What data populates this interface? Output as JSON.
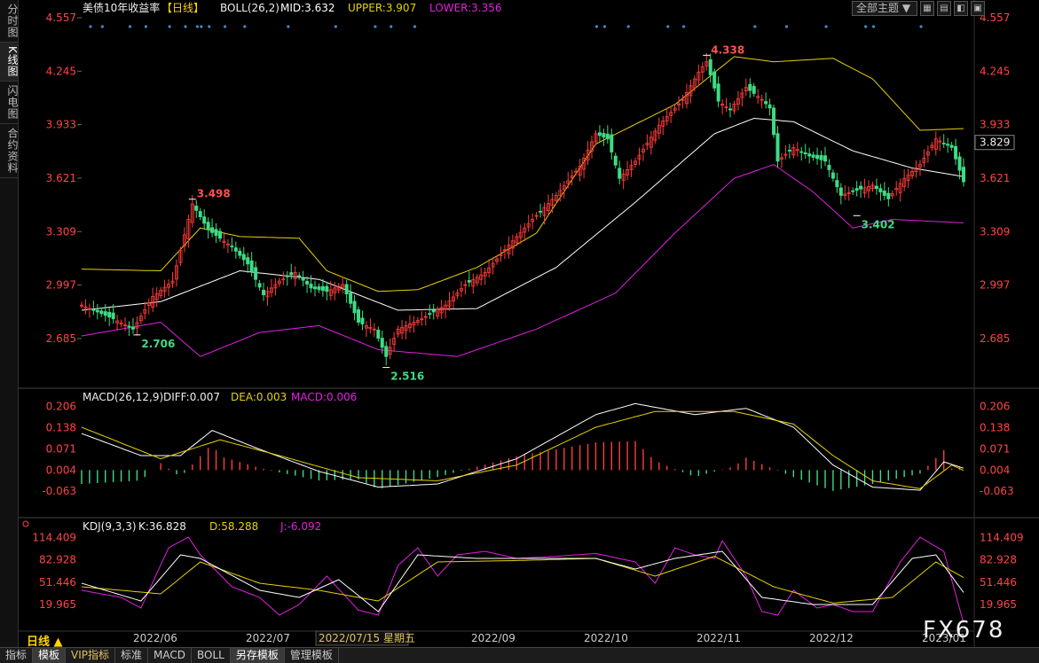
{
  "sidebar": {
    "tabs": [
      "分时图",
      "K线图",
      "闪电图",
      "合约资料"
    ]
  },
  "top_controls": {
    "theme_label": "全部主题",
    "theme_arrow": "▼"
  },
  "period_button": "日线 ▲",
  "bottom_tabs": [
    "指标",
    "模板",
    "VIP指标",
    "标准",
    "MACD",
    "BOLL",
    "另存模板",
    "管理模板"
  ],
  "watermark": "FX678",
  "colors": {
    "up": "#ff3b3b",
    "down": "#3ddc84",
    "mid": "#ffffff",
    "upper": "#e6d200",
    "lower": "#e020e0",
    "axis": "#ff4444"
  },
  "chart_data": [
    {
      "type": "candlestick",
      "title": "美债10年收益率",
      "period": "【日线】",
      "indicator": "BOLL(26,2)",
      "legend": [
        {
          "name": "MID",
          "value": "3.632"
        },
        {
          "name": "UPPER",
          "value": "3.907"
        },
        {
          "name": "LOWER",
          "value": "3.356"
        }
      ],
      "y_ticks": [
        "4.557",
        "4.245",
        "3.933",
        "3.621",
        "3.309",
        "2.997",
        "2.685"
      ],
      "current_price": "3.829",
      "x_labels": [
        "2022/06",
        "2022/07",
        "2022/08",
        "2022/09",
        "2022/10",
        "2022/11",
        "2022/12",
        "2023/01"
      ],
      "crosshair_label": "2022/07/15 星期五",
      "annotations": [
        {
          "label": "3.498",
          "type": "high"
        },
        {
          "label": "2.706",
          "type": "low"
        },
        {
          "label": "2.516",
          "type": "low"
        },
        {
          "label": "4.338",
          "type": "high"
        },
        {
          "label": "3.402",
          "type": "low"
        }
      ],
      "ylim": [
        2.55,
        4.557
      ],
      "price_path": [
        [
          0,
          2.88
        ],
        [
          8,
          2.8
        ],
        [
          13,
          2.74
        ],
        [
          18,
          2.93
        ],
        [
          23,
          3.02
        ],
        [
          28,
          3.47
        ],
        [
          32,
          3.32
        ],
        [
          38,
          3.22
        ],
        [
          42,
          3.12
        ],
        [
          46,
          2.94
        ],
        [
          50,
          3.02
        ],
        [
          54,
          3.07
        ],
        [
          58,
          2.98
        ],
        [
          62,
          2.96
        ],
        [
          66,
          3.0
        ],
        [
          70,
          2.78
        ],
        [
          74,
          2.74
        ],
        [
          77,
          2.58
        ],
        [
          80,
          2.74
        ],
        [
          86,
          2.8
        ],
        [
          92,
          2.88
        ],
        [
          97,
          3.0
        ],
        [
          102,
          3.07
        ],
        [
          108,
          3.23
        ],
        [
          114,
          3.38
        ],
        [
          120,
          3.52
        ],
        [
          126,
          3.69
        ],
        [
          130,
          3.88
        ],
        [
          133,
          3.85
        ],
        [
          136,
          3.62
        ],
        [
          140,
          3.72
        ],
        [
          146,
          3.93
        ],
        [
          152,
          4.08
        ],
        [
          156,
          4.24
        ],
        [
          158,
          4.3
        ],
        [
          161,
          4.07
        ],
        [
          164,
          4.02
        ],
        [
          168,
          4.15
        ],
        [
          172,
          4.08
        ],
        [
          174,
          4.03
        ],
        [
          176,
          3.72
        ],
        [
          180,
          3.8
        ],
        [
          184,
          3.75
        ],
        [
          188,
          3.72
        ],
        [
          192,
          3.52
        ],
        [
          196,
          3.55
        ],
        [
          200,
          3.58
        ],
        [
          204,
          3.5
        ],
        [
          208,
          3.62
        ],
        [
          212,
          3.7
        ],
        [
          216,
          3.85
        ],
        [
          220,
          3.8
        ],
        [
          223,
          3.6
        ]
      ],
      "mid_path": [
        [
          0,
          2.85
        ],
        [
          20,
          2.9
        ],
        [
          40,
          3.08
        ],
        [
          60,
          3.03
        ],
        [
          80,
          2.85
        ],
        [
          100,
          2.86
        ],
        [
          120,
          3.1
        ],
        [
          140,
          3.48
        ],
        [
          160,
          3.88
        ],
        [
          170,
          3.97
        ],
        [
          180,
          3.95
        ],
        [
          195,
          3.78
        ],
        [
          210,
          3.68
        ],
        [
          223,
          3.63
        ]
      ],
      "upper_path": [
        [
          0,
          3.09
        ],
        [
          20,
          3.08
        ],
        [
          30,
          3.33
        ],
        [
          40,
          3.28
        ],
        [
          55,
          3.27
        ],
        [
          62,
          3.08
        ],
        [
          75,
          2.96
        ],
        [
          85,
          2.97
        ],
        [
          100,
          3.1
        ],
        [
          115,
          3.3
        ],
        [
          130,
          3.82
        ],
        [
          150,
          4.05
        ],
        [
          165,
          4.33
        ],
        [
          175,
          4.3
        ],
        [
          190,
          4.32
        ],
        [
          200,
          4.2
        ],
        [
          212,
          3.9
        ],
        [
          223,
          3.91
        ]
      ],
      "lower_path": [
        [
          0,
          2.7
        ],
        [
          20,
          2.78
        ],
        [
          30,
          2.58
        ],
        [
          45,
          2.72
        ],
        [
          60,
          2.76
        ],
        [
          75,
          2.62
        ],
        [
          95,
          2.58
        ],
        [
          115,
          2.74
        ],
        [
          135,
          2.95
        ],
        [
          150,
          3.3
        ],
        [
          165,
          3.62
        ],
        [
          175,
          3.7
        ],
        [
          185,
          3.54
        ],
        [
          195,
          3.33
        ],
        [
          205,
          3.38
        ],
        [
          223,
          3.36
        ]
      ]
    },
    {
      "type": "histogram",
      "indicator": "MACD(26,12,9)",
      "legend": [
        {
          "name": "DIFF",
          "value": "0.007"
        },
        {
          "name": "DEA",
          "value": "0.003"
        },
        {
          "name": "MACD",
          "value": "0.006"
        }
      ],
      "y_ticks": [
        "0.206",
        "0.138",
        "0.071",
        "0.004",
        "-0.063"
      ],
      "ylim": [
        -0.13,
        0.23
      ],
      "diff_path": [
        [
          0,
          0.12
        ],
        [
          15,
          0.05
        ],
        [
          25,
          0.05
        ],
        [
          33,
          0.13
        ],
        [
          45,
          0.07
        ],
        [
          60,
          0.0
        ],
        [
          75,
          -0.05
        ],
        [
          90,
          -0.04
        ],
        [
          110,
          0.04
        ],
        [
          130,
          0.18
        ],
        [
          140,
          0.215
        ],
        [
          155,
          0.18
        ],
        [
          168,
          0.2
        ],
        [
          180,
          0.14
        ],
        [
          190,
          0.02
        ],
        [
          200,
          -0.05
        ],
        [
          212,
          -0.06
        ],
        [
          218,
          0.03
        ],
        [
          223,
          0.01
        ]
      ],
      "dea_path": [
        [
          0,
          0.14
        ],
        [
          20,
          0.04
        ],
        [
          35,
          0.1
        ],
        [
          50,
          0.05
        ],
        [
          70,
          -0.02
        ],
        [
          90,
          -0.03
        ],
        [
          110,
          0.02
        ],
        [
          130,
          0.14
        ],
        [
          145,
          0.19
        ],
        [
          165,
          0.19
        ],
        [
          180,
          0.15
        ],
        [
          190,
          0.05
        ],
        [
          200,
          -0.03
        ],
        [
          212,
          -0.055
        ],
        [
          220,
          0.02
        ],
        [
          223,
          0.003
        ]
      ]
    },
    {
      "type": "line",
      "indicator": "KDJ(9,3,3)",
      "legend": [
        {
          "name": "K",
          "value": "36.828"
        },
        {
          "name": "D",
          "value": "58.288"
        },
        {
          "name": "J",
          "value": "-6.092"
        }
      ],
      "y_ticks": [
        "114.409",
        "82.928",
        "51.446",
        "19.965"
      ],
      "ylim": [
        -10,
        125
      ],
      "j_path": [
        [
          0,
          40
        ],
        [
          10,
          30
        ],
        [
          15,
          15
        ],
        [
          22,
          100
        ],
        [
          27,
          115
        ],
        [
          30,
          90
        ],
        [
          38,
          45
        ],
        [
          45,
          30
        ],
        [
          50,
          5
        ],
        [
          55,
          20
        ],
        [
          62,
          60
        ],
        [
          70,
          12
        ],
        [
          75,
          5
        ],
        [
          80,
          75
        ],
        [
          85,
          100
        ],
        [
          90,
          60
        ],
        [
          95,
          90
        ],
        [
          102,
          95
        ],
        [
          110,
          85
        ],
        [
          120,
          88
        ],
        [
          130,
          92
        ],
        [
          140,
          80
        ],
        [
          145,
          50
        ],
        [
          150,
          100
        ],
        [
          155,
          90
        ],
        [
          160,
          85
        ],
        [
          162,
          110
        ],
        [
          168,
          60
        ],
        [
          172,
          10
        ],
        [
          176,
          5
        ],
        [
          180,
          40
        ],
        [
          186,
          15
        ],
        [
          190,
          20
        ],
        [
          195,
          10
        ],
        [
          200,
          10
        ],
        [
          207,
          80
        ],
        [
          212,
          115
        ],
        [
          218,
          95
        ],
        [
          223,
          -6
        ]
      ],
      "k_path": [
        [
          0,
          50
        ],
        [
          15,
          25
        ],
        [
          25,
          90
        ],
        [
          30,
          85
        ],
        [
          45,
          40
        ],
        [
          55,
          30
        ],
        [
          65,
          55
        ],
        [
          75,
          10
        ],
        [
          85,
          90
        ],
        [
          100,
          85
        ],
        [
          130,
          85
        ],
        [
          140,
          70
        ],
        [
          150,
          85
        ],
        [
          162,
          95
        ],
        [
          172,
          30
        ],
        [
          185,
          20
        ],
        [
          200,
          20
        ],
        [
          210,
          85
        ],
        [
          216,
          90
        ],
        [
          223,
          37
        ]
      ],
      "d_path": [
        [
          0,
          45
        ],
        [
          20,
          35
        ],
        [
          30,
          80
        ],
        [
          45,
          50
        ],
        [
          60,
          40
        ],
        [
          75,
          25
        ],
        [
          90,
          80
        ],
        [
          110,
          82
        ],
        [
          130,
          85
        ],
        [
          145,
          60
        ],
        [
          160,
          88
        ],
        [
          175,
          45
        ],
        [
          190,
          22
        ],
        [
          205,
          30
        ],
        [
          216,
          80
        ],
        [
          223,
          58
        ]
      ]
    }
  ]
}
